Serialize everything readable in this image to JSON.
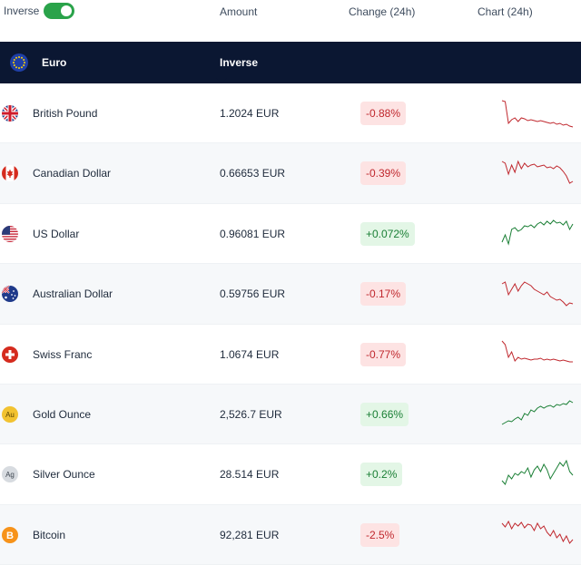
{
  "header": {
    "inverse_label": "Inverse",
    "inverse_on": true,
    "col_amount": "Amount",
    "col_change": "Change (24h)",
    "col_chart": "Chart (24h)"
  },
  "base": {
    "name": "Euro",
    "inverse_label": "Inverse",
    "flag_icon": "eu-flag-icon"
  },
  "colors": {
    "header_bg": "#0b1732",
    "toggle_on": "#2aa34a",
    "negative": "#c0282e",
    "positive": "#1a7f35"
  },
  "rows": [
    {
      "name": "British Pound",
      "amount": "1.2024 EUR",
      "change": "-0.88%",
      "direction": "neg",
      "icon": "uk-flag-icon",
      "spark": [
        5,
        6,
        30,
        26,
        24,
        28,
        24,
        25,
        27,
        26,
        27,
        28,
        27,
        28,
        29,
        30,
        29,
        31,
        30,
        32,
        31,
        33,
        34
      ]
    },
    {
      "name": "Canadian Dollar",
      "amount": "0.66653 EUR",
      "change": "-0.39%",
      "direction": "neg",
      "icon": "canada-flag-icon",
      "spark": [
        6,
        8,
        20,
        10,
        18,
        6,
        14,
        8,
        12,
        10,
        9,
        12,
        11,
        10,
        13,
        12,
        14,
        11,
        13,
        17,
        22,
        30,
        28
      ]
    },
    {
      "name": "US Dollar",
      "amount": "0.96081 EUR",
      "change": "+0.072%",
      "direction": "pos",
      "icon": "us-flag-icon",
      "spark": [
        28,
        20,
        30,
        14,
        12,
        16,
        14,
        10,
        11,
        9,
        12,
        8,
        6,
        9,
        5,
        8,
        4,
        7,
        6,
        9,
        5,
        14,
        8
      ]
    },
    {
      "name": "Australian Dollar",
      "amount": "0.59756 EUR",
      "change": "-0.17%",
      "direction": "neg",
      "icon": "australia-flag-icon",
      "spark": [
        8,
        6,
        20,
        14,
        8,
        16,
        10,
        6,
        8,
        10,
        14,
        16,
        18,
        20,
        17,
        22,
        24,
        26,
        25,
        28,
        32,
        29,
        30
      ]
    },
    {
      "name": "Swiss Franc",
      "amount": "1.0674 EUR",
      "change": "-0.77%",
      "direction": "neg",
      "icon": "swiss-flag-icon",
      "spark": [
        4,
        8,
        22,
        16,
        26,
        22,
        24,
        23,
        24,
        25,
        24,
        24,
        23,
        25,
        24,
        25,
        24,
        25,
        26,
        25,
        26,
        27,
        27
      ]
    },
    {
      "name": "Gold Ounce",
      "amount": "2,526.7 EUR",
      "change": "+0.66%",
      "direction": "pos",
      "icon": "gold-coin-icon",
      "spark": [
        30,
        28,
        26,
        27,
        24,
        22,
        25,
        18,
        20,
        14,
        16,
        12,
        10,
        12,
        10,
        9,
        11,
        8,
        9,
        7,
        8,
        4,
        6
      ]
    },
    {
      "name": "Silver Ounce",
      "amount": "28.514 EUR",
      "change": "+0.2%",
      "direction": "pos",
      "icon": "silver-coin-icon",
      "spark": [
        26,
        30,
        20,
        24,
        18,
        20,
        16,
        18,
        12,
        22,
        14,
        10,
        16,
        8,
        14,
        24,
        18,
        12,
        6,
        10,
        4,
        16,
        20
      ]
    },
    {
      "name": "Bitcoin",
      "amount": "92,281 EUR",
      "change": "-2.5%",
      "direction": "neg",
      "icon": "bitcoin-icon",
      "spark": [
        6,
        10,
        4,
        12,
        6,
        9,
        5,
        11,
        7,
        8,
        14,
        6,
        12,
        9,
        16,
        20,
        14,
        22,
        18,
        26,
        20,
        28,
        24
      ]
    }
  ]
}
